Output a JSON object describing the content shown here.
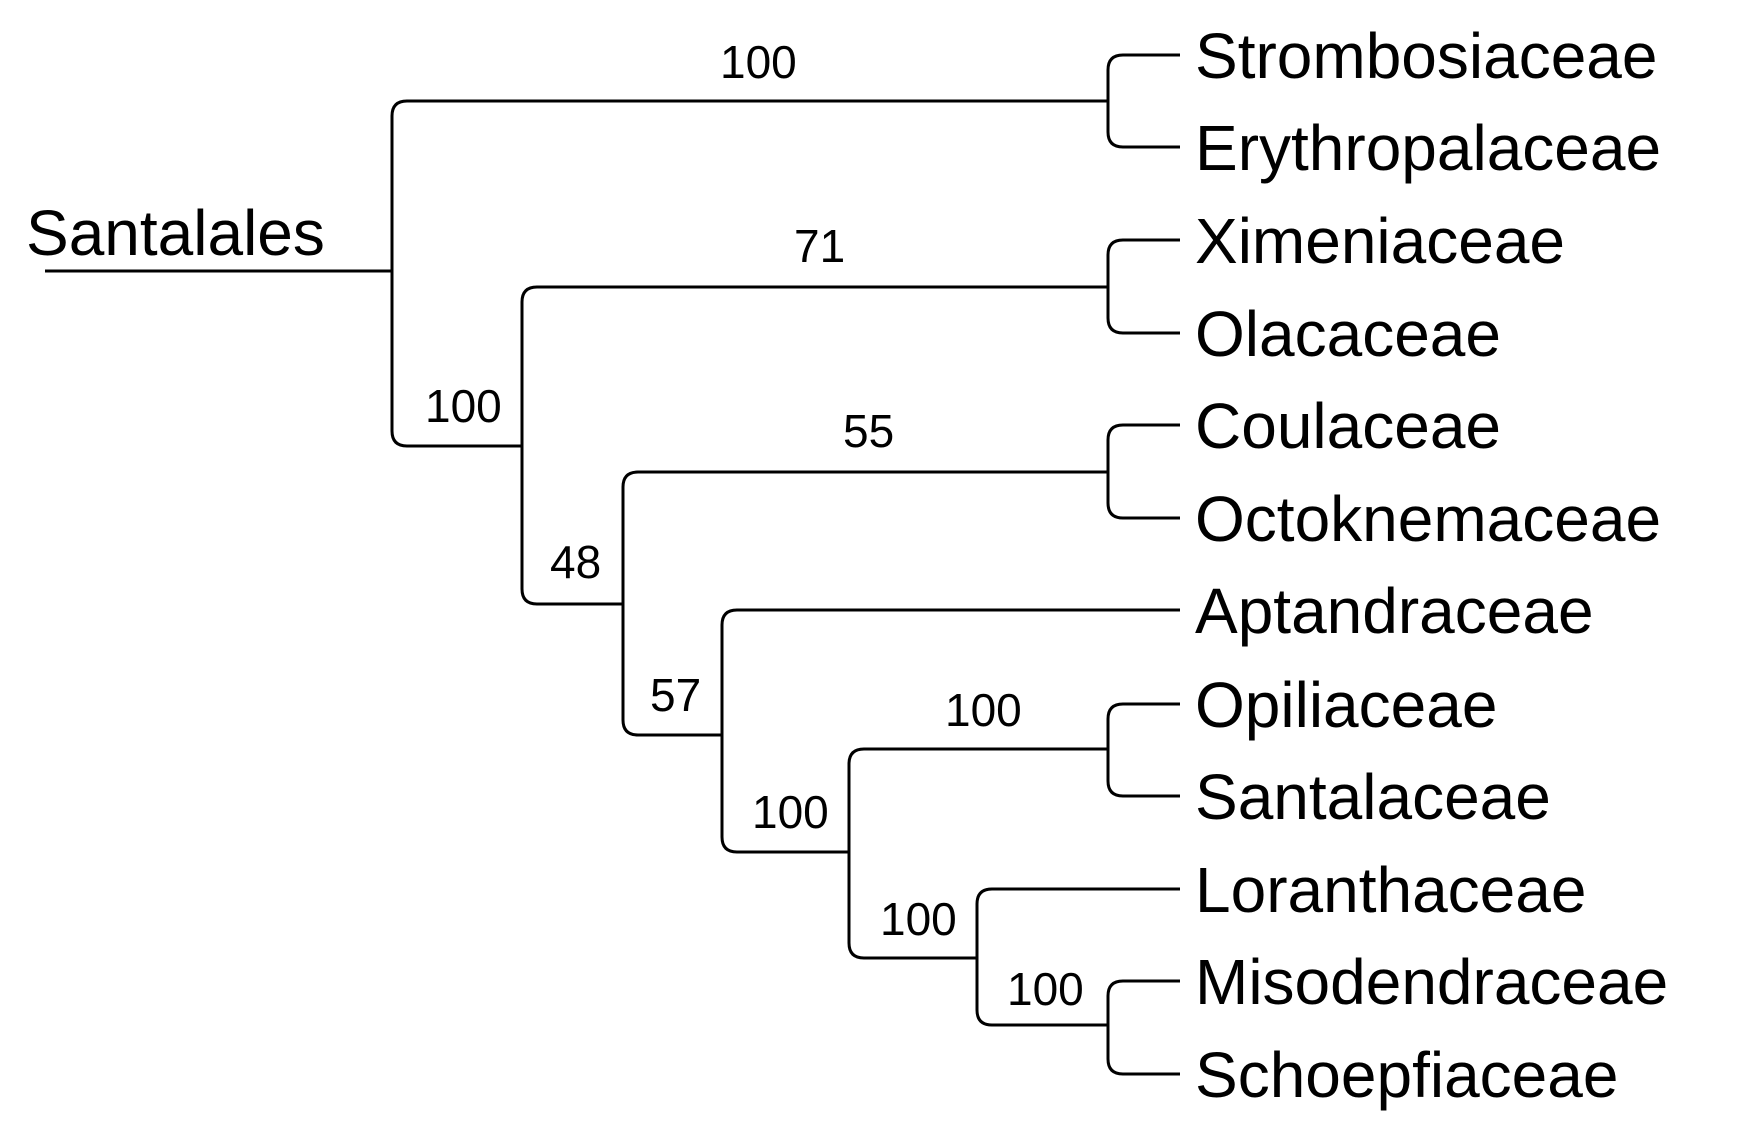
{
  "tree": {
    "root_label": "Santalales",
    "taxa": [
      "Strombosiaceae",
      "Erythropalaceae",
      "Ximeniaceae",
      "Olacaceae",
      "Coulaceae",
      "Octoknemaceae",
      "Aptandraceae",
      "Opiliaceae",
      "Santalaceae",
      "Loranthaceae",
      "Misodendraceae",
      "Schoepfiaceae"
    ],
    "support_values": {
      "strombosiaceae_erythropalaceae": "100",
      "ximeniaceae_olacaceae": "71",
      "coulaceae_octoknemaceae": "55",
      "opiliaceae_santalaceae": "100",
      "misodendraceae_schoepfiaceae": "100",
      "core_clade": "100",
      "node_48": "48",
      "node_57": "57",
      "opiliaceae_to_schoepfiaceae": "100",
      "loranthaceae_to_schoepfiaceae": "100"
    }
  }
}
